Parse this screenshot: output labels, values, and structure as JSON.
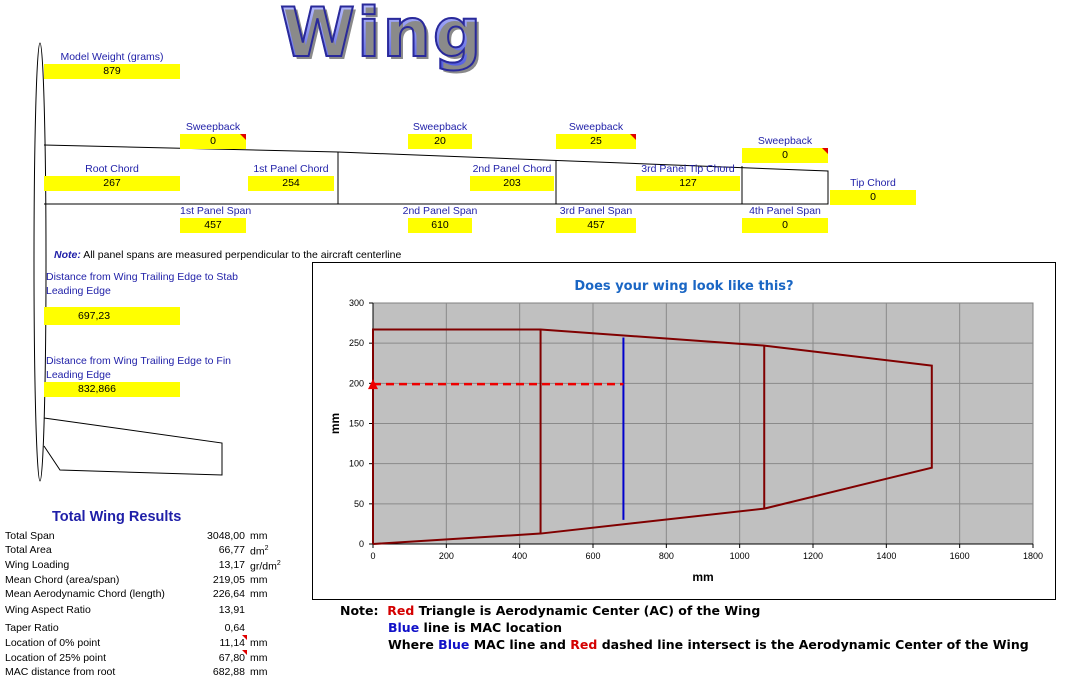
{
  "title": "Wing",
  "inputs": {
    "model_weight": {
      "label": "Model Weight (grams)",
      "value": "879"
    },
    "sweep1": {
      "label": "Sweepback",
      "value": "0"
    },
    "sweep2": {
      "label": "Sweepback",
      "value": "20"
    },
    "sweep3": {
      "label": "Sweepback",
      "value": "25"
    },
    "sweep4": {
      "label": "Sweepback",
      "value": "0"
    },
    "root_chord": {
      "label": "Root Chord",
      "value": "267"
    },
    "panel1_chord": {
      "label": "1st Panel Chord",
      "value": "254"
    },
    "panel2_chord": {
      "label": "2nd Panel Chord",
      "value": "203"
    },
    "panel3_tip_chord": {
      "label": "3rd Panel Tip Chord",
      "value": "127"
    },
    "tip_chord": {
      "label": "Tip Chord",
      "value": "0"
    },
    "panel1_span": {
      "label": "1st Panel Span",
      "value": "457"
    },
    "panel2_span": {
      "label": "2nd Panel Span",
      "value": "610"
    },
    "panel3_span": {
      "label": "3rd Panel Span",
      "value": "457"
    },
    "panel4_span": {
      "label": "4th Panel Span",
      "value": "0"
    },
    "note_label": "Note:",
    "note_text": "All panel spans are measured perpendicular to the aircraft centerline",
    "stab_distance": {
      "label1": "Distance from Wing Trailing Edge to Stab",
      "label2": "Leading Edge",
      "value": "697,23"
    },
    "fin_distance": {
      "label1": "Distance from Wing Trailing Edge to Fin",
      "label2": "Leading Edge",
      "value": "832,866"
    }
  },
  "results": {
    "heading": "Total Wing Results",
    "rows": [
      {
        "label": "Total Span",
        "value": "3048,00",
        "unit": "mm",
        "sup": ""
      },
      {
        "label": "Total Area",
        "value": "66,77",
        "unit": "dm",
        "sup": "2"
      },
      {
        "label": "Wing Loading",
        "value": "13,17",
        "unit": "gr/dm",
        "sup": "2"
      },
      {
        "label": "Mean Chord (area/span)",
        "value": "219,05",
        "unit": "mm",
        "sup": ""
      },
      {
        "label": "Mean Aerodynamic Chord (length)",
        "value": "226,64",
        "unit": "mm",
        "sup": ""
      },
      {
        "label": "Wing Aspect Ratio",
        "value": "13,91",
        "unit": "",
        "sup": ""
      },
      {
        "label": "Taper Ratio",
        "value": "0,64",
        "unit": "",
        "sup": ""
      },
      {
        "label": "Location of 0% point",
        "value": "11,14",
        "unit": "mm",
        "sup": ""
      },
      {
        "label": "Location of 25% point",
        "value": "67,80",
        "unit": "mm",
        "sup": ""
      },
      {
        "label": "MAC distance from root",
        "value": "682,88",
        "unit": "mm",
        "sup": ""
      }
    ]
  },
  "chart_data": {
    "type": "line",
    "title": "Does your wing look like this?",
    "xlabel": "mm",
    "ylabel": "mm",
    "xlim": [
      0,
      1800
    ],
    "ylim": [
      0,
      300
    ],
    "xticks": [
      "0",
      "200",
      "400",
      "600",
      "800",
      "1000",
      "1200",
      "1400",
      "1600",
      "1800"
    ],
    "yticks": [
      "0",
      "50",
      "100",
      "150",
      "200",
      "250",
      "300"
    ],
    "grid": true,
    "plot_background": "#c0c0c0",
    "outline_color": "#800000",
    "series": [
      {
        "role": "wing-outline",
        "color": "#800000",
        "points": [
          [
            0,
            0
          ],
          [
            0,
            267
          ],
          [
            457,
            267
          ],
          [
            1067,
            247
          ],
          [
            1524,
            222
          ],
          [
            1524,
            95
          ],
          [
            1067,
            44
          ],
          [
            457,
            13
          ],
          [
            0,
            0
          ]
        ]
      },
      {
        "role": "panel-line-1",
        "color": "#800000",
        "points": [
          [
            457,
            267
          ],
          [
            457,
            13
          ]
        ]
      },
      {
        "role": "panel-line-2",
        "color": "#800000",
        "points": [
          [
            1067,
            247
          ],
          [
            1067,
            44
          ]
        ]
      },
      {
        "role": "mac-line",
        "color": "#0000cc",
        "points": [
          [
            683,
            257
          ],
          [
            683,
            30
          ]
        ]
      },
      {
        "role": "ac-dashed-line",
        "color": "#ee0000",
        "points": [
          [
            0,
            199
          ],
          [
            683,
            199
          ]
        ]
      },
      {
        "role": "ac-triangle",
        "color": "#ee0000",
        "points": [
          [
            0,
            199
          ]
        ]
      }
    ]
  },
  "notes": {
    "prefix": "Note:",
    "line1_red": "Red",
    "line1_rest": " Triangle is Aerodynamic Center (AC) of the Wing",
    "line2_blue": "Blue",
    "line2_rest": " line is MAC location",
    "line3_a": "Where ",
    "line3_blue": "Blue",
    "line3_b": " MAC line and ",
    "line3_red": "Red",
    "line3_c": " dashed line intersect is the Aerodynamic Center of the Wing"
  }
}
